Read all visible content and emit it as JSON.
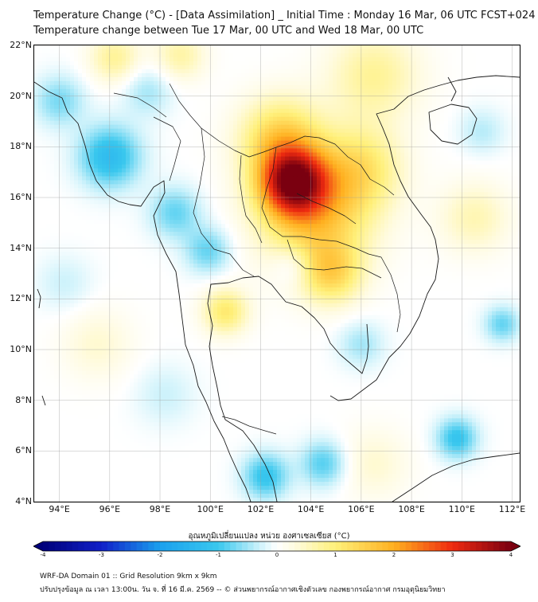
{
  "header": {
    "title_line1": "Temperature Change (°C) - [Data Assimilation] _ Initial Time : Monday 16 Mar, 06 UTC FCST+024",
    "title_line2": "Temperature change between Tue 17 Mar, 00 UTC and Wed 18 Mar, 00 UTC"
  },
  "map": {
    "lat_labels": [
      "22°N",
      "20°N",
      "18°N",
      "16°N",
      "14°N",
      "12°N",
      "10°N",
      "8°N",
      "6°N",
      "4°N"
    ],
    "lon_labels": [
      "94°E",
      "96°E",
      "98°E",
      "100°E",
      "102°E",
      "104°E",
      "106°E",
      "108°E",
      "110°E",
      "112°E"
    ],
    "lat_range": [
      4,
      22
    ],
    "lon_range": [
      93,
      112.3
    ],
    "field_features": [
      {
        "lon": 103.3,
        "lat": 16.6,
        "value": 3.2,
        "spread": 1.3
      },
      {
        "lon": 104.2,
        "lat": 15.4,
        "value": 1.6,
        "spread": 2.2
      },
      {
        "lon": 102.8,
        "lat": 18.3,
        "value": 1.4,
        "spread": 1.6
      },
      {
        "lon": 106.0,
        "lat": 17.2,
        "value": 1.0,
        "spread": 1.6
      },
      {
        "lon": 106.5,
        "lat": 20.8,
        "value": 0.8,
        "spread": 1.8
      },
      {
        "lon": 104.8,
        "lat": 13.0,
        "value": 1.2,
        "spread": 1.2
      },
      {
        "lon": 100.6,
        "lat": 11.5,
        "value": 1.1,
        "spread": 0.9
      },
      {
        "lon": 96.2,
        "lat": 21.5,
        "value": 0.8,
        "spread": 1.0
      },
      {
        "lon": 98.8,
        "lat": 21.6,
        "value": 0.7,
        "spread": 1.0
      },
      {
        "lon": 110.5,
        "lat": 15.2,
        "value": 0.6,
        "spread": 1.4
      },
      {
        "lon": 95.5,
        "lat": 10.2,
        "value": 0.4,
        "spread": 1.4
      },
      {
        "lon": 106.5,
        "lat": 5.5,
        "value": 0.4,
        "spread": 1.4
      },
      {
        "lon": 96.0,
        "lat": 17.6,
        "value": -1.3,
        "spread": 1.2
      },
      {
        "lon": 94.0,
        "lat": 19.8,
        "value": -0.7,
        "spread": 1.0
      },
      {
        "lon": 97.5,
        "lat": 20.2,
        "value": -0.5,
        "spread": 1.0
      },
      {
        "lon": 98.6,
        "lat": 15.4,
        "value": -0.8,
        "spread": 1.0
      },
      {
        "lon": 99.9,
        "lat": 13.9,
        "value": -0.8,
        "spread": 0.9
      },
      {
        "lon": 103.3,
        "lat": 13.3,
        "value": -0.5,
        "spread": 0.8
      },
      {
        "lon": 102.2,
        "lat": 5.0,
        "value": -1.1,
        "spread": 0.9
      },
      {
        "lon": 104.5,
        "lat": 5.5,
        "value": -0.9,
        "spread": 0.9
      },
      {
        "lon": 109.8,
        "lat": 6.5,
        "value": -1.1,
        "spread": 0.8
      },
      {
        "lon": 111.6,
        "lat": 11.0,
        "value": -0.8,
        "spread": 0.7
      },
      {
        "lon": 110.8,
        "lat": 18.6,
        "value": -0.4,
        "spread": 0.9
      },
      {
        "lon": 106.0,
        "lat": 10.2,
        "value": -0.5,
        "spread": 0.9
      },
      {
        "lon": 94.2,
        "lat": 12.6,
        "value": -0.3,
        "spread": 1.1
      },
      {
        "lon": 98.2,
        "lat": 8.2,
        "value": -0.3,
        "spread": 1.2
      }
    ]
  },
  "colorbar": {
    "label": "อุณหภูมิเปลี่ยนแปลง หน่วย องศาเซลเซียส (°C)",
    "min": -4,
    "max": 4,
    "ticks": [
      "-4",
      "-3",
      "-2",
      "-1",
      "0",
      "1",
      "2",
      "3",
      "4"
    ],
    "colors": {
      "negative_extreme": "#00007a",
      "negative_mid": "#3ac8ee",
      "neutral": "#ffffff",
      "positive_mid": "#fff07a",
      "positive_extreme": "#7a0010"
    }
  },
  "footer": {
    "line1": "WRF-DA Domain 01 :: Grid Resolution 9km x 9km",
    "line2": "ปรับปรุงข้อมูล ณ เวลา 13:00น. วัน จ. ที่ 16 มี.ค. 2569 -- © ส่วนพยากรณ์อากาศเชิงตัวเลข กองพยากรณ์อากาศ กรมอุตุนิยมวิทยา"
  }
}
